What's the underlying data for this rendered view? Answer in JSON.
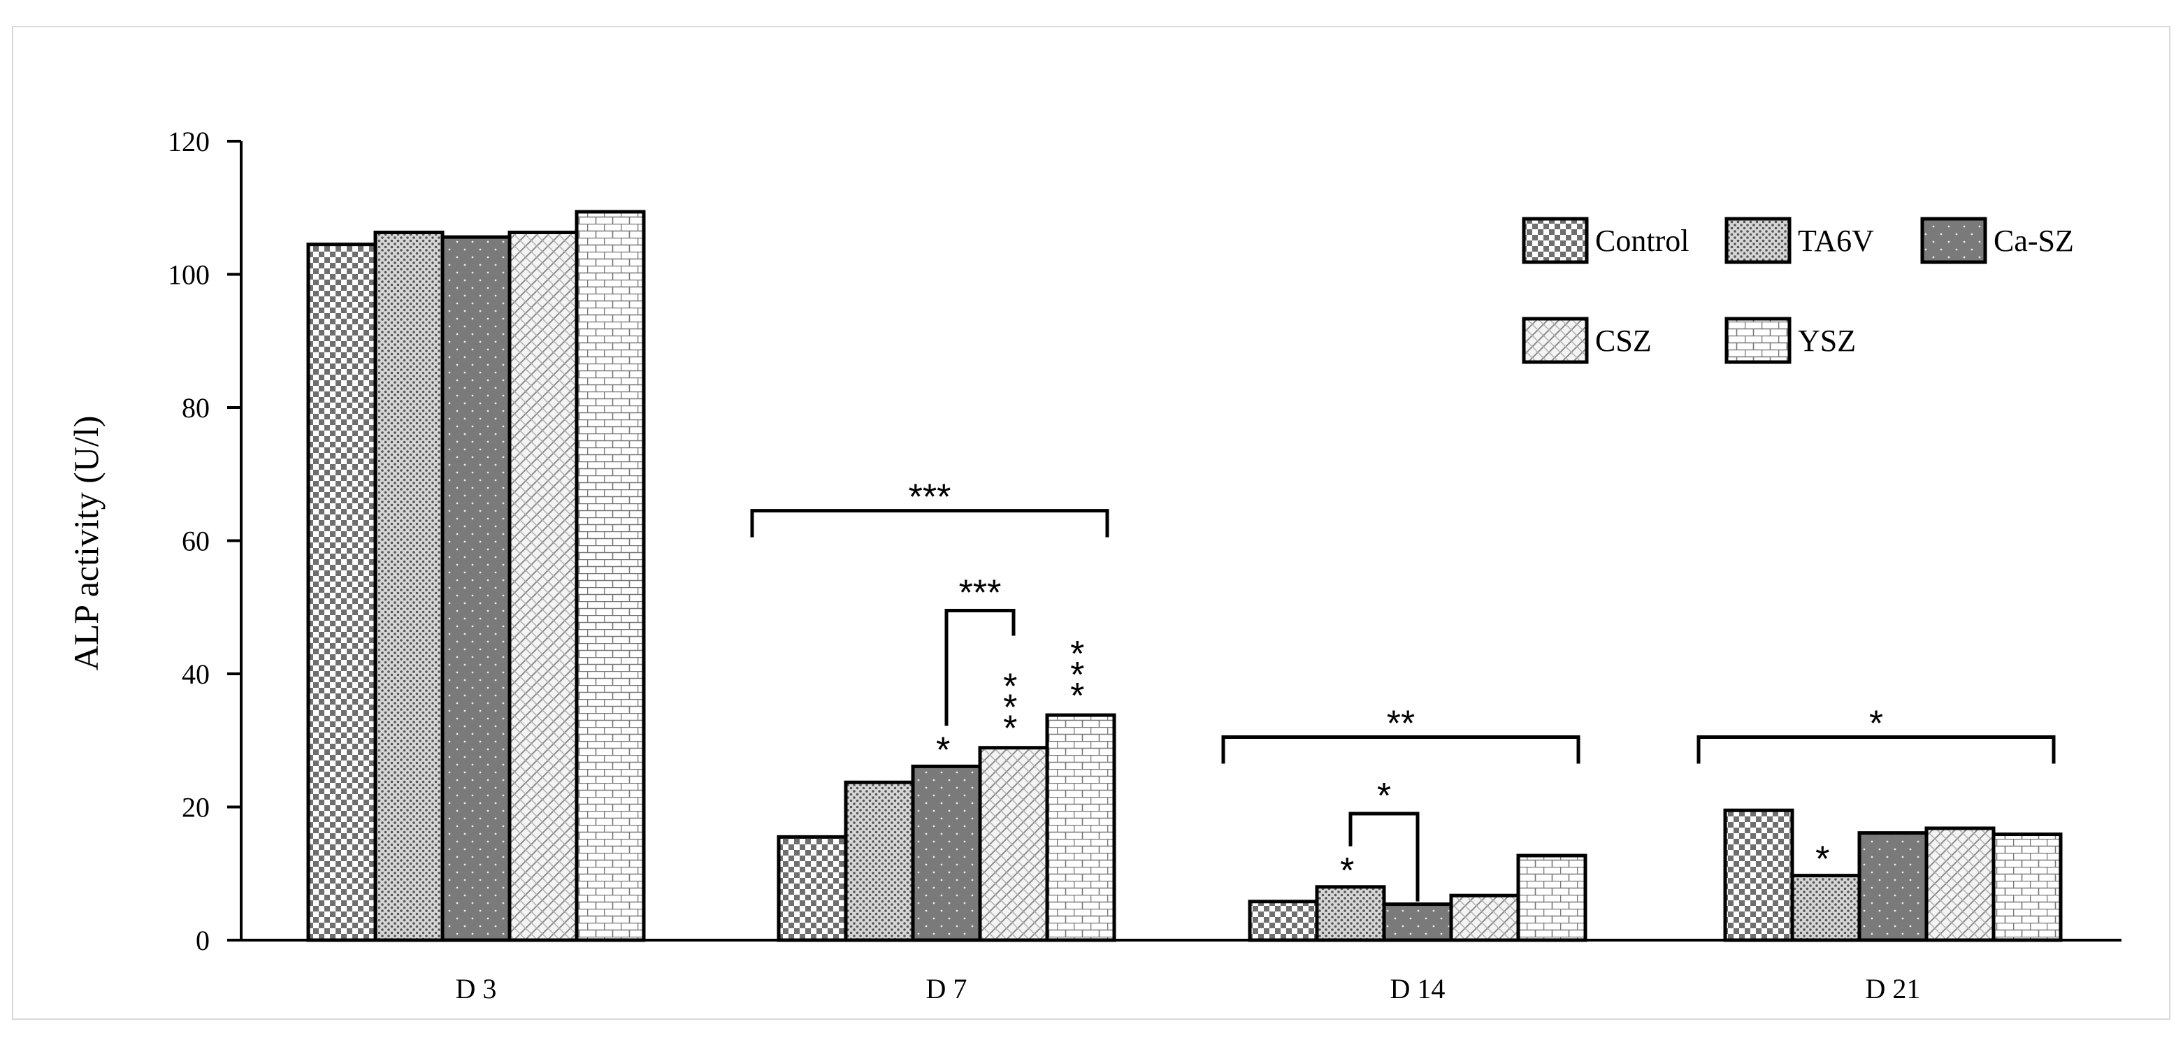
{
  "chart_data": {
    "type": "bar",
    "title": "",
    "xlabel": "",
    "ylabel": "ALP activity (U/l)",
    "ylim": [
      0,
      120
    ],
    "yticks": [
      0,
      20,
      40,
      60,
      80,
      100,
      120
    ],
    "categories": [
      "D 3",
      "D 7",
      "D 14",
      "D 21"
    ],
    "series": [
      {
        "name": "Control",
        "pattern": "checker",
        "values": [
          104.5,
          15.5,
          5.8,
          19.5
        ]
      },
      {
        "name": "TA6V",
        "pattern": "dots",
        "values": [
          106.3,
          23.7,
          8.0,
          9.7
        ]
      },
      {
        "name": "Ca-SZ",
        "pattern": "dark-dots",
        "values": [
          105.6,
          26.1,
          5.4,
          16.1
        ]
      },
      {
        "name": "CSZ",
        "pattern": "diagonal",
        "values": [
          106.3,
          28.9,
          6.7,
          16.8
        ]
      },
      {
        "name": "YSZ",
        "pattern": "brick",
        "values": [
          109.4,
          33.8,
          12.7,
          15.9
        ]
      }
    ],
    "legend_position": "top-right",
    "grid": false,
    "annotations": {
      "group_brackets": [
        {
          "category": "D 7",
          "label": "***",
          "height": 64.5
        },
        {
          "category": "D 14",
          "label": "**",
          "height": 30.5
        },
        {
          "category": "D 21",
          "label": "*",
          "height": 30.5
        }
      ],
      "pair_brackets": [
        {
          "category": "D 7",
          "from_series": 2,
          "to_series": 3,
          "label": "***",
          "height": 49.5
        },
        {
          "category": "D 14",
          "from_series": 1,
          "to_series": 2,
          "label": "*",
          "height": 19.0
        }
      ],
      "bar_marks": [
        {
          "category": "D 7",
          "series": 2,
          "label": "*"
        },
        {
          "category": "D 7",
          "series": 3,
          "label": "***",
          "vertical": true
        },
        {
          "category": "D 7",
          "series": 4,
          "label": "***",
          "vertical": true
        },
        {
          "category": "D 14",
          "series": 1,
          "label": "*"
        },
        {
          "category": "D 21",
          "series": 1,
          "label": "*"
        }
      ]
    }
  }
}
